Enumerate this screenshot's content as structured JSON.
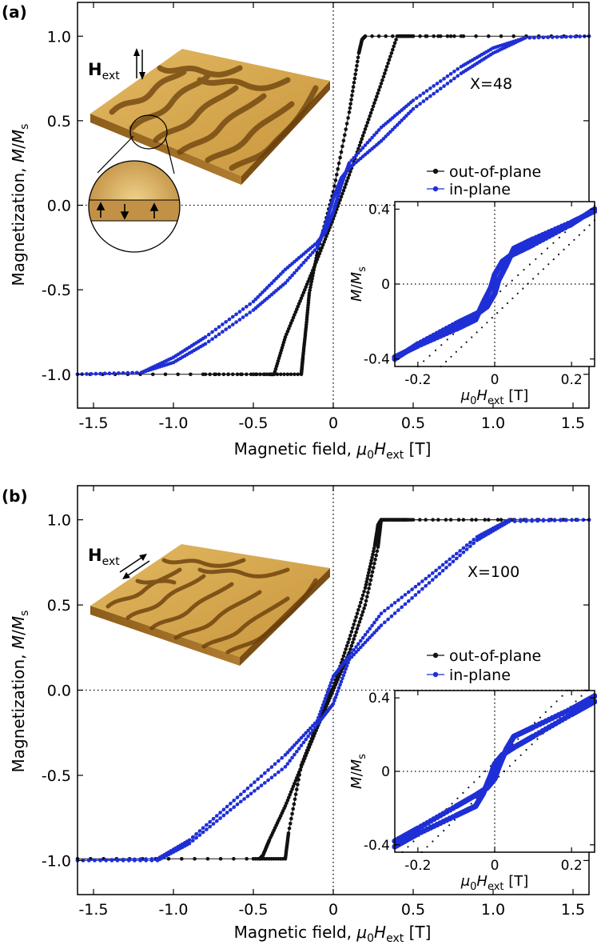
{
  "chart_data": [
    {
      "type": "line",
      "panel_label": "(a)",
      "sample_label": "X=48",
      "field_label": "H",
      "field_label_sub": "ext",
      "field_orientation": "out-of-plane",
      "ylabel": "Magnetization, M/Ms",
      "ylabel_parts": [
        "Magnetization, ",
        "M",
        "/",
        "M",
        "s"
      ],
      "xlabel": "Magnetic field, μ0Hext [T]",
      "xlabel_parts": [
        "Magnetic field, ",
        "μ",
        "0",
        "H",
        "ext",
        " [T]"
      ],
      "xlim": [
        -1.6,
        1.6
      ],
      "ylim": [
        -1.2,
        1.2
      ],
      "xticks": [
        -1.5,
        -1.0,
        -0.5,
        0,
        0.5,
        1.0,
        1.5
      ],
      "xtick_labels": [
        "-1.5",
        "-1.0",
        "-0.5",
        "0",
        "0.5",
        "1.0",
        "1.5"
      ],
      "yticks": [
        -1.0,
        -0.5,
        0.0,
        0.5,
        1.0
      ],
      "ytick_labels": [
        "-1.0",
        "-0.5",
        "0.0",
        "0.5",
        "1.0"
      ],
      "legend": [
        "out-of-plane",
        "in-plane"
      ],
      "series": [
        {
          "name": "out-of-plane",
          "color": "#111111",
          "branches": [
            {
              "x": [
                -0.8,
                -0.4,
                -0.37,
                -0.3,
                -0.2,
                -0.1,
                0.0,
                0.1,
                0.2,
                0.3,
                0.4,
                0.5,
                1.6
              ],
              "y": [
                -1.0,
                -1.0,
                -1.0,
                -0.78,
                -0.55,
                -0.32,
                -0.08,
                0.18,
                0.45,
                0.72,
                1.0,
                1.0,
                1.0
              ]
            },
            {
              "x": [
                0.8,
                0.2,
                0.18,
                0.16,
                0.1,
                0.0,
                -0.1,
                -0.15,
                -0.17,
                -0.19,
                -0.2,
                -0.5,
                -1.6
              ],
              "y": [
                1.0,
                1.0,
                0.98,
                0.9,
                0.55,
                0.08,
                -0.28,
                -0.52,
                -0.72,
                -0.9,
                -1.0,
                -1.0,
                -1.0
              ]
            }
          ]
        },
        {
          "name": "in-plane",
          "color": "#1f2fd6",
          "branches": [
            {
              "x": [
                -1.6,
                -1.2,
                -1.0,
                -0.8,
                -0.5,
                -0.3,
                -0.1,
                -0.05,
                0.0,
                0.05,
                0.1,
                0.3,
                0.5,
                0.8,
                1.0,
                1.2,
                1.6
              ],
              "y": [
                -1.0,
                -0.99,
                -0.93,
                -0.82,
                -0.62,
                -0.46,
                -0.25,
                -0.12,
                0.04,
                0.16,
                0.22,
                0.38,
                0.57,
                0.78,
                0.9,
                0.99,
                1.0
              ]
            },
            {
              "x": [
                1.6,
                1.2,
                1.0,
                0.8,
                0.5,
                0.3,
                0.1,
                0.05,
                0.0,
                -0.05,
                -0.1,
                -0.3,
                -0.5,
                -0.8,
                -1.0,
                -1.2,
                -1.6
              ],
              "y": [
                1.0,
                0.99,
                0.93,
                0.82,
                0.62,
                0.46,
                0.25,
                0.12,
                -0.04,
                -0.16,
                -0.22,
                -0.38,
                -0.57,
                -0.78,
                -0.9,
                -0.99,
                -1.0
              ]
            }
          ]
        }
      ],
      "inset": {
        "xlim": [
          -0.26,
          0.26
        ],
        "ylim": [
          -0.44,
          0.44
        ],
        "xticks": [
          -0.2,
          0,
          0.2
        ],
        "xtick_labels": [
          "-0.2",
          "0",
          "0.2"
        ],
        "yticks": [
          -0.4,
          0,
          0.4
        ],
        "ytick_labels": [
          "-0.4",
          "0",
          "0.4"
        ],
        "ylabel_parts": [
          "M",
          "/",
          "M",
          "s"
        ],
        "xlabel_parts": [
          "μ",
          "0",
          "H",
          "ext",
          " [T]"
        ],
        "inplane_branches": [
          {
            "x": [
              -0.26,
              -0.2,
              -0.1,
              -0.05,
              -0.03,
              -0.01,
              0.0,
              0.02,
              0.04,
              0.1,
              0.2,
              0.26
            ],
            "y": [
              -0.39,
              -0.33,
              -0.24,
              -0.19,
              -0.1,
              -0.02,
              0.05,
              0.12,
              0.15,
              0.21,
              0.32,
              0.4
            ]
          },
          {
            "x": [
              0.26,
              0.2,
              0.1,
              0.05,
              0.03,
              0.01,
              0.0,
              -0.02,
              -0.04,
              -0.1,
              -0.2,
              -0.26
            ],
            "y": [
              0.39,
              0.33,
              0.24,
              0.19,
              0.1,
              0.02,
              -0.05,
              -0.12,
              -0.15,
              -0.21,
              -0.32,
              -0.4
            ]
          }
        ],
        "outofplane_branches": [
          {
            "x": [
              -0.2,
              0.26
            ],
            "y": [
              -0.44,
              0.42
            ]
          },
          {
            "x": [
              -0.14,
              0.26
            ],
            "y": [
              -0.44,
              0.34
            ]
          }
        ]
      }
    },
    {
      "type": "line",
      "panel_label": "(b)",
      "sample_label": "X=100",
      "field_label": "H",
      "field_label_sub": "ext",
      "field_orientation": "in-plane",
      "ylabel": "Magnetization, M/Ms",
      "ylabel_parts": [
        "Magnetization, ",
        "M",
        "/",
        "M",
        "s"
      ],
      "xlabel": "Magnetic field, μ0Hext [T]",
      "xlabel_parts": [
        "Magnetic field, ",
        "μ",
        "0",
        "H",
        "ext",
        " [T]"
      ],
      "xlim": [
        -1.6,
        1.6
      ],
      "ylim": [
        -1.2,
        1.2
      ],
      "xticks": [
        -1.5,
        -1.0,
        -0.5,
        0,
        0.5,
        1.0,
        1.5
      ],
      "xtick_labels": [
        "-1.5",
        "-1.0",
        "-0.5",
        "0",
        "0.5",
        "1.0",
        "1.5"
      ],
      "yticks": [
        -1.0,
        -0.5,
        0.0,
        0.5,
        1.0
      ],
      "ytick_labels": [
        "-1.0",
        "-0.5",
        "0.0",
        "0.5",
        "1.0"
      ],
      "legend": [
        "out-of-plane",
        "in-plane"
      ],
      "series": [
        {
          "name": "out-of-plane",
          "color": "#111111",
          "branches": [
            {
              "x": [
                -1.6,
                -0.46,
                -0.44,
                -0.4,
                -0.3,
                -0.2,
                -0.1,
                0.0,
                0.1,
                0.2,
                0.28,
                0.3,
                0.5,
                1.6
              ],
              "y": [
                -0.99,
                -0.99,
                -0.97,
                -0.88,
                -0.68,
                -0.45,
                -0.22,
                0.0,
                0.22,
                0.5,
                0.84,
                1.0,
                1.0,
                1.0
              ]
            },
            {
              "x": [
                1.6,
                0.46,
                0.3,
                0.28,
                0.26,
                0.2,
                0.1,
                0.0,
                -0.1,
                -0.2,
                -0.28,
                -0.3,
                -0.5
              ],
              "y": [
                1.0,
                1.0,
                1.0,
                0.97,
                0.85,
                0.6,
                0.3,
                0.02,
                -0.2,
                -0.44,
                -0.84,
                -0.99,
                -0.99
              ]
            }
          ]
        },
        {
          "name": "in-plane",
          "color": "#1f2fd6",
          "branches": [
            {
              "x": [
                -1.6,
                -1.1,
                -0.9,
                -0.6,
                -0.3,
                -0.1,
                0.0,
                0.1,
                0.3,
                0.6,
                0.9,
                1.1,
                1.6
              ],
              "y": [
                -1.0,
                -0.99,
                -0.88,
                -0.63,
                -0.38,
                -0.18,
                0.08,
                0.2,
                0.45,
                0.67,
                0.9,
                1.0,
                1.0
              ]
            },
            {
              "x": [
                1.6,
                1.1,
                0.9,
                0.6,
                0.3,
                0.1,
                0.0,
                -0.1,
                -0.3,
                -0.6,
                -0.9,
                -1.1,
                -1.6
              ],
              "y": [
                1.0,
                0.99,
                0.88,
                0.63,
                0.38,
                0.18,
                -0.08,
                -0.2,
                -0.45,
                -0.67,
                -0.9,
                -1.0,
                -1.0
              ]
            }
          ]
        }
      ],
      "inset": {
        "xlim": [
          -0.26,
          0.26
        ],
        "ylim": [
          -0.44,
          0.44
        ],
        "xticks": [
          -0.2,
          0,
          0.2
        ],
        "xtick_labels": [
          "-0.2",
          "0",
          "0.2"
        ],
        "yticks": [
          -0.4,
          0,
          0.4
        ],
        "ytick_labels": [
          "-0.4",
          "0",
          "0.4"
        ],
        "ylabel_parts": [
          "M",
          "/",
          "M",
          "s"
        ],
        "xlabel_parts": [
          "μ",
          "0",
          "H",
          "ext",
          " [T]"
        ],
        "inplane_branches": [
          {
            "x": [
              -0.26,
              -0.2,
              -0.1,
              -0.05,
              -0.03,
              -0.01,
              0.0,
              0.02,
              0.05,
              0.1,
              0.2,
              0.26
            ],
            "y": [
              -0.41,
              -0.34,
              -0.24,
              -0.19,
              -0.12,
              -0.02,
              0.04,
              0.09,
              0.13,
              0.19,
              0.31,
              0.38
            ]
          },
          {
            "x": [
              0.26,
              0.2,
              0.1,
              0.05,
              0.03,
              0.01,
              0.0,
              -0.02,
              -0.05,
              -0.1,
              -0.2,
              -0.26
            ],
            "y": [
              0.41,
              0.34,
              0.24,
              0.19,
              0.12,
              0.02,
              -0.04,
              -0.09,
              -0.13,
              -0.19,
              -0.31,
              -0.38
            ]
          }
        ],
        "outofplane_branches": [
          {
            "x": [
              -0.19,
              0.24
            ],
            "y": [
              -0.44,
              0.44
            ]
          },
          {
            "x": [
              -0.24,
              0.19
            ],
            "y": [
              -0.44,
              0.44
            ]
          }
        ]
      }
    }
  ]
}
